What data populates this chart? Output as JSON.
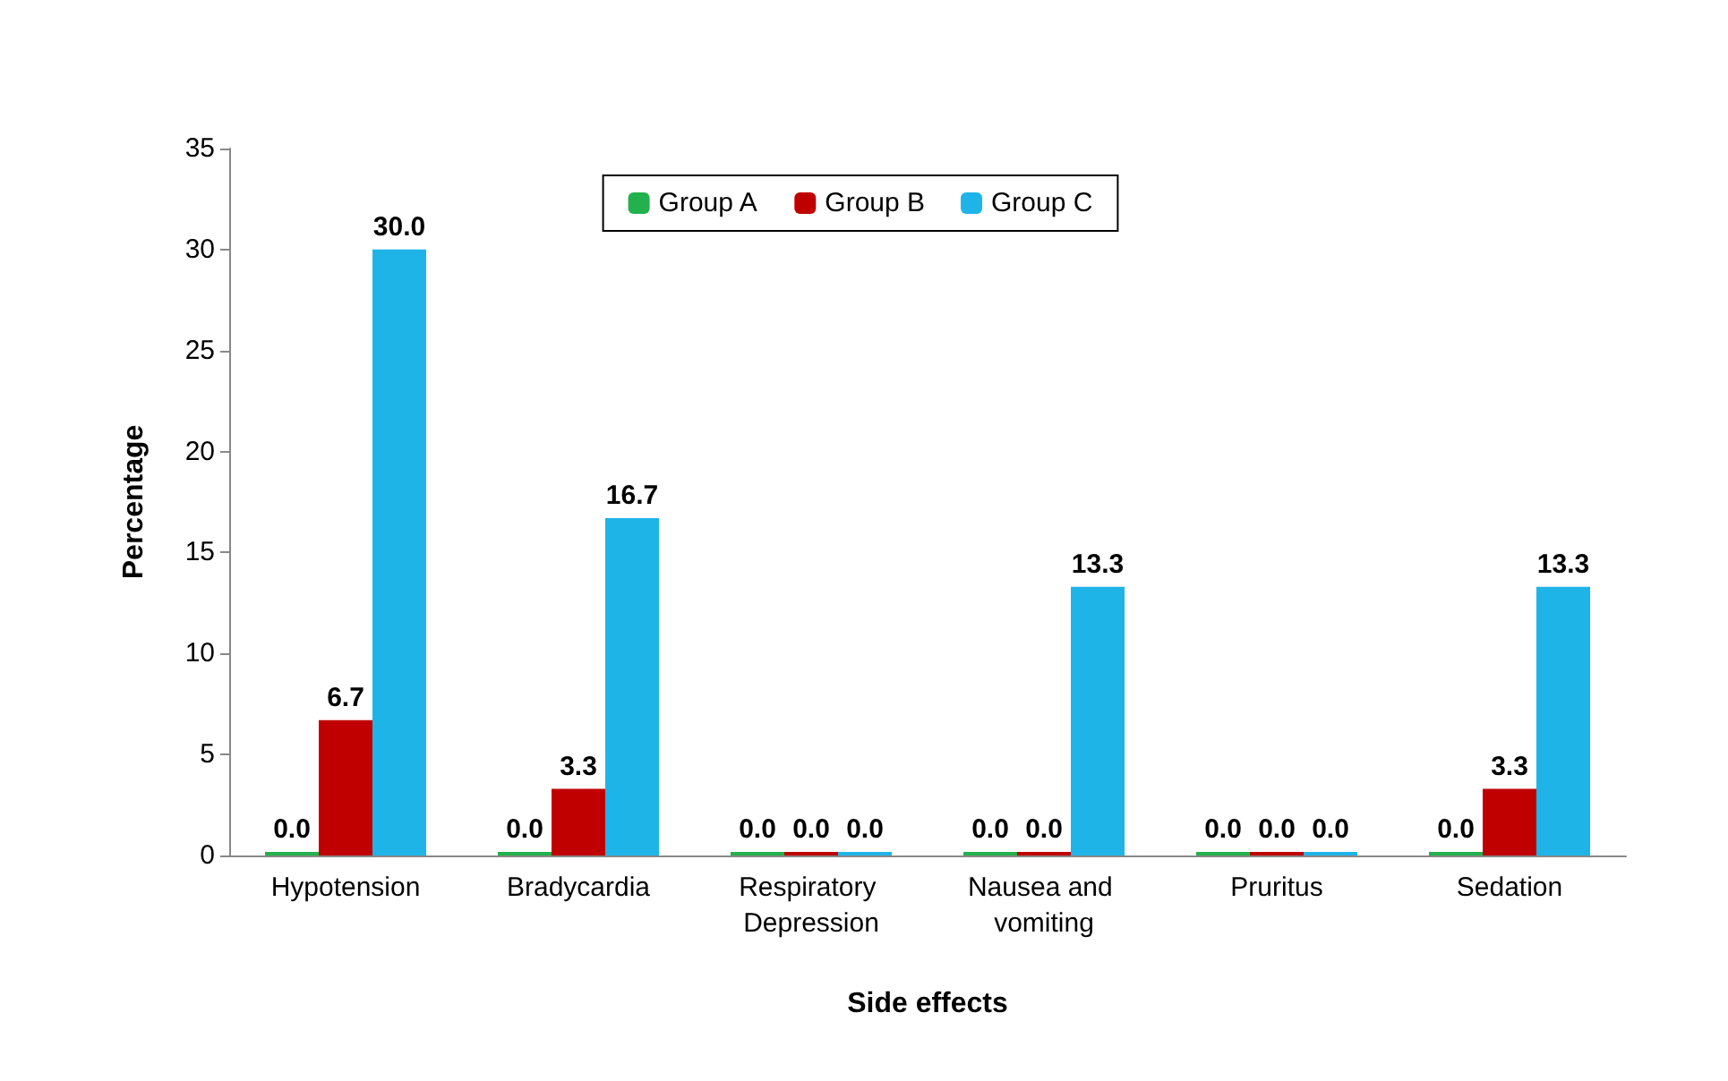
{
  "chart_data": {
    "type": "bar",
    "xlabel": "Side effects",
    "ylabel": "Percentage",
    "categories": [
      "Hypotension",
      "Bradycardia",
      "Respiratory Depression",
      "Nausea and vomiting",
      "Pruritus",
      "Sedation"
    ],
    "series": [
      {
        "name": "Group A",
        "color": "#22b14c",
        "values": [
          0,
          0,
          0,
          0,
          0,
          0
        ],
        "value_labels": [
          "0.0",
          "0.0",
          "0.0",
          "0.0",
          "0.0",
          "0.0"
        ]
      },
      {
        "name": "Group B",
        "color": "#c00000",
        "values": [
          6.7,
          3.3,
          0,
          0,
          0,
          3.3
        ],
        "value_labels": [
          "6.7",
          "3.3",
          "0.0",
          "0.0",
          "0.0",
          "3.3"
        ]
      },
      {
        "name": "Group C",
        "color": "#1fb4e8",
        "values": [
          30,
          16.7,
          0,
          13.3,
          0,
          13.3
        ],
        "value_labels": [
          "30.0",
          "16.7",
          "0.0",
          "13.3",
          "0.0",
          "13.3"
        ]
      }
    ],
    "ylim": [
      0,
      35
    ],
    "yticks": [
      0,
      5,
      10,
      15,
      20,
      25,
      30,
      35
    ],
    "grid": false,
    "legend": "top"
  }
}
